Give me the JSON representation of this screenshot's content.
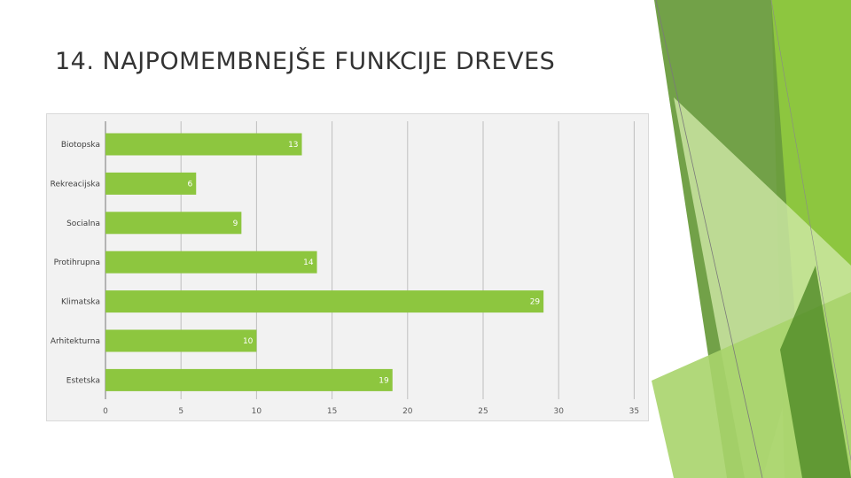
{
  "slide": {
    "title": "14. NAJPOMEMBNEJŠE FUNKCIJE DREVES"
  },
  "theme": {
    "bar_color": "#8dc63f",
    "panel_bg": "#f2f2f2",
    "grid_color": "#bfbfbf",
    "decor_colors": [
      "#6a9c3e",
      "#8dc63f",
      "#a9d46c",
      "#cfe8a8",
      "#4f8a25"
    ]
  },
  "chart_data": {
    "type": "bar",
    "orientation": "horizontal",
    "categories": [
      "Biotopska",
      "Rekreacijska",
      "Socialna",
      "Protihrupna",
      "Klimatska",
      "Arhitekturna",
      "Estetska"
    ],
    "values": [
      13,
      6,
      9,
      14,
      29,
      10,
      19
    ],
    "x_ticks": [
      "0",
      "5",
      "10",
      "15",
      "20",
      "25",
      "30",
      "35"
    ],
    "xlim": [
      0,
      35
    ],
    "grid": true,
    "data_labels": true
  }
}
